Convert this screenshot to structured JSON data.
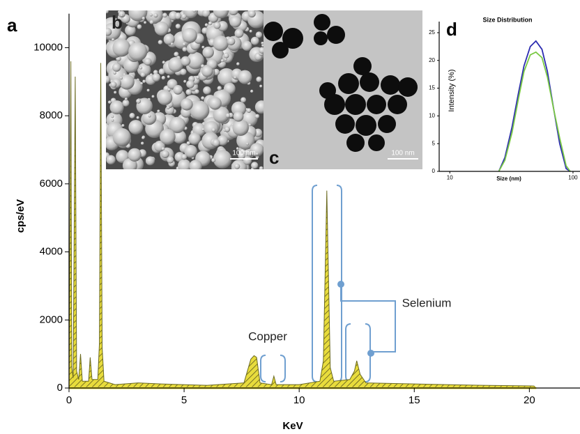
{
  "chart_data": [
    {
      "type": "area",
      "panel_label": "a",
      "xlabel": "KeV",
      "ylabel": "cps/eV",
      "x": [
        0,
        0.08,
        0.12,
        0.18,
        0.27,
        0.33,
        0.42,
        0.5,
        0.58,
        0.85,
        0.92,
        1.0,
        1.25,
        1.32,
        1.38,
        1.44,
        1.52,
        2.0,
        3.0,
        4.0,
        6.0,
        7.6,
        7.9,
        8.04,
        8.15,
        8.3,
        8.8,
        8.9,
        9.0,
        10.0,
        10.9,
        11.05,
        11.2,
        11.35,
        11.5,
        12.2,
        12.4,
        12.5,
        12.65,
        12.9,
        15.0,
        18.0,
        20.2,
        20.3
      ],
      "series": [
        {
          "color": "#6b6a20",
          "fill": "#e8dc3c",
          "values": [
            0,
            9600,
            600,
            300,
            9150,
            500,
            250,
            1000,
            200,
            200,
            900,
            250,
            250,
            1300,
            9550,
            1200,
            200,
            100,
            150,
            120,
            80,
            150,
            850,
            950,
            900,
            150,
            100,
            350,
            100,
            100,
            200,
            800,
            5800,
            600,
            200,
            250,
            500,
            800,
            400,
            150,
            120,
            80,
            60,
            0
          ]
        }
      ],
      "xlim": [
        0,
        22.2
      ],
      "ylim": [
        0,
        11000
      ],
      "xticks": [
        0,
        5,
        10,
        15,
        20
      ],
      "yticks": [
        0,
        2000,
        4000,
        6000,
        8000,
        10000
      ],
      "annotations": [
        "Copper",
        "Selenium"
      ]
    },
    {
      "type": "line",
      "panel_label": "d",
      "title": "Size Distribution",
      "xlabel": "Size (nm)",
      "ylabel": "Intensity (%)",
      "xscale": "log",
      "x": [
        25,
        28,
        32,
        36,
        40,
        45,
        50,
        56,
        62,
        70,
        78,
        88,
        95
      ],
      "series": [
        {
          "color": "#2b2bb0",
          "values": [
            0,
            2.5,
            8,
            14,
            19,
            22.5,
            23.5,
            22,
            18,
            11,
            5,
            0.5,
            0
          ]
        },
        {
          "color": "#7ac943",
          "values": [
            0,
            2,
            7,
            13,
            18,
            21,
            21.5,
            20.5,
            17,
            11,
            6,
            1,
            0
          ]
        }
      ],
      "xlim": [
        8.2,
        114
      ],
      "ylim": [
        0,
        27
      ],
      "xticks": [
        10,
        100
      ],
      "yticks": [
        0,
        5,
        10,
        15,
        20,
        25
      ]
    }
  ],
  "images": [
    {
      "label": "b",
      "scale_bar": "100 nm"
    },
    {
      "label": "c",
      "scale_bar": "100 nm"
    }
  ]
}
